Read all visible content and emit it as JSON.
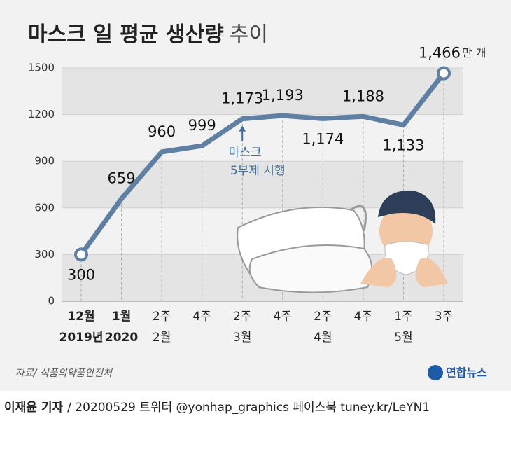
{
  "chart_data": {
    "type": "line",
    "title": "마스크 일 평균 생산량",
    "title_suffix": "추이",
    "unit": "만 개",
    "categories": [
      "12월",
      "1월",
      "2주",
      "4주",
      "2주",
      "4주",
      "2주",
      "4주",
      "1주",
      "3주"
    ],
    "category_sublabels": [
      "2019년",
      "2020",
      "2월",
      null,
      "3월",
      null,
      "4월",
      null,
      "5월",
      null
    ],
    "values": [
      300,
      659,
      960,
      999,
      1173,
      1193,
      1174,
      1188,
      1133,
      1466
    ],
    "value_labels": [
      "300",
      "659",
      "960",
      "999",
      "1,173",
      "1,193",
      "1,174",
      "1,188",
      "1,133",
      "1,466"
    ],
    "color": "#5f7fa3",
    "ylim": [
      0,
      1500
    ],
    "yticks": [
      0,
      300,
      600,
      900,
      1200,
      1500
    ],
    "annotation": {
      "lines": [
        "마스크",
        "5부제 시행"
      ],
      "index": 4
    },
    "source": "자료/ 식품의약품안전처",
    "logo": "연합뉴스",
    "byline": "이재윤 기자",
    "footer": "/ 20200529  트위터 @yonhap_graphics  페이스북 tuney.kr/LeYN1"
  }
}
